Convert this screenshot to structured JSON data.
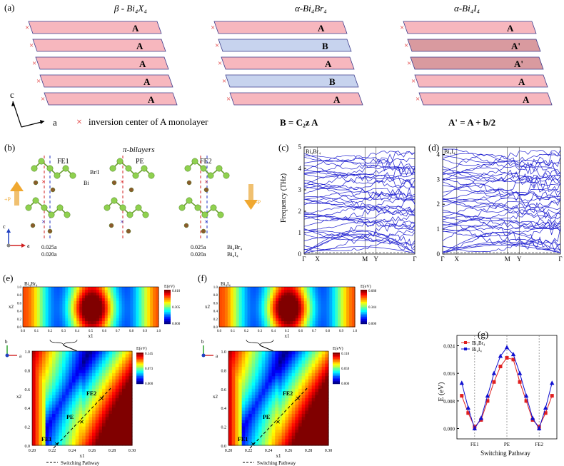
{
  "panel_a": {
    "label": "(a)",
    "titles": [
      "β - Bi₄X₄",
      "α-Bi₄Br₄",
      "α-Bi₄I₄"
    ],
    "stacks": [
      [
        "A",
        "A",
        "A",
        "A",
        "A"
      ],
      [
        "A",
        "B",
        "A",
        "B",
        "A"
      ],
      [
        "A",
        "A'",
        "A'",
        "A",
        "A"
      ]
    ],
    "axis_c": "c",
    "axis_a": "a",
    "marker": "×",
    "legend": "inversion center of A monolayer",
    "eq_b": "B = C₂z A",
    "eq_a_prime": "A' = A + b/2",
    "colors": {
      "pink": "#f7b7be",
      "blue": "#c7d3ee",
      "darkpink": "#d99a9f",
      "edge": "#3c3c8c",
      "marker": "#e03030"
    }
  },
  "panel_b": {
    "label": "(b)",
    "title": "π-bilayers",
    "configs": [
      "FE1",
      "PE",
      "FE2"
    ],
    "atom_labels": [
      "Br/I",
      "Bi"
    ],
    "pol_left": "+P",
    "pol_right": "-P",
    "fe1_disp": [
      "0.025a",
      "0.020a"
    ],
    "fe2_disp": [
      "0.025a",
      "0.020a"
    ],
    "compounds": [
      "Bi₄Br₄",
      "Bi₄I₄"
    ],
    "axis_c": "c",
    "axis_a": "a",
    "colors": {
      "bi": "#8fd14f",
      "x": "#8b5a2b",
      "up_arrow": "#f0a830",
      "down_arrow": "#f0a830"
    }
  },
  "panel_c": {
    "label": "(c)",
    "compound": "Bi₄Br₄",
    "ylabel": "Frequency (THz)",
    "yticks": [
      "0",
      "1",
      "2",
      "3",
      "4",
      "5"
    ],
    "xticks": [
      "Γ",
      "X",
      "M",
      "Y",
      "Γ"
    ],
    "line_color": "#1f1fd0"
  },
  "panel_d": {
    "label": "(d)",
    "compound": "Bi₄I₄",
    "yticks": [
      "0",
      "1",
      "2",
      "3",
      "4"
    ],
    "xticks": [
      "Γ",
      "X",
      "M",
      "Y",
      "Γ"
    ]
  },
  "panel_e": {
    "label": "(e)",
    "compound": "Bi₄Br₄",
    "cbar_title": "E(eV)",
    "top_cbar": [
      "0.610",
      "0.305",
      "0.000"
    ],
    "top_xticks": [
      "0.0",
      "0.1",
      "0.2",
      "0.3",
      "0.4",
      "0.5",
      "0.6",
      "0.7",
      "0.8",
      "0.9",
      "1.0"
    ],
    "top_yticks": [
      "1.0",
      "0.8",
      "0.6",
      "0.4",
      "0.2",
      "0.0"
    ],
    "zoom_cbar": [
      "0.145",
      "0.073",
      "0.000"
    ],
    "zoom_xticks": [
      "0.20",
      "0.22",
      "0.24",
      "0.26",
      "0.28",
      "0.30"
    ],
    "zoom_yticks": [
      "1.0",
      "0.8",
      "0.6",
      "0.4",
      "0.2",
      "0.0"
    ],
    "xlabel": "x1",
    "ylabel": "x2",
    "points": [
      "FE1",
      "PE",
      "FE2"
    ],
    "legend": "Switching Pathway",
    "axis_b": "b",
    "axis_a": "a"
  },
  "panel_f": {
    "label": "(f)",
    "compound": "Bi₄I₄",
    "cbar_title": "E(eV)",
    "top_cbar": [
      "0.688",
      "0.344",
      "0.000"
    ],
    "zoom_cbar": [
      "0.118",
      "0.059",
      "0.000"
    ],
    "zoom_xticks": [
      "0.20",
      "0.22",
      "0.24",
      "0.26",
      "0.28",
      "0.30"
    ],
    "legend": "Switching Pathway"
  },
  "panel_g": {
    "label": "(g)",
    "ylabel": "E (eV)",
    "xlabel": "Switching Pathway",
    "yticks": [
      "0.000",
      "0.008",
      "0.016",
      "0.024"
    ],
    "xticks": [
      "FE1",
      "PE",
      "FE2"
    ],
    "chart_data": {
      "type": "line",
      "title": "",
      "xlabel": "Switching Pathway",
      "ylabel": "E (eV)",
      "ylim": [
        -0.003,
        0.027
      ],
      "x": [
        -1.4,
        -1.2,
        -1.0,
        -0.8,
        -0.6,
        -0.4,
        -0.2,
        0.0,
        0.2,
        0.4,
        0.6,
        0.8,
        1.0,
        1.2,
        1.4
      ],
      "series": [
        {
          "name": "Bi₄Br₄",
          "color": "#e02020",
          "marker": "square",
          "values": [
            0.0095,
            0.0045,
            0.0005,
            0.0025,
            0.008,
            0.0135,
            0.018,
            0.0205,
            0.02,
            0.0135,
            0.008,
            0.0025,
            0.0005,
            0.0045,
            0.0095
          ]
        },
        {
          "name": "Bi₄I₄",
          "color": "#1010d0",
          "marker": "triangle",
          "values": [
            0.0132,
            0.006,
            0.0,
            0.003,
            0.0095,
            0.016,
            0.021,
            0.0235,
            0.0215,
            0.016,
            0.0095,
            0.003,
            0.0,
            0.006,
            0.0132
          ]
        }
      ]
    }
  }
}
